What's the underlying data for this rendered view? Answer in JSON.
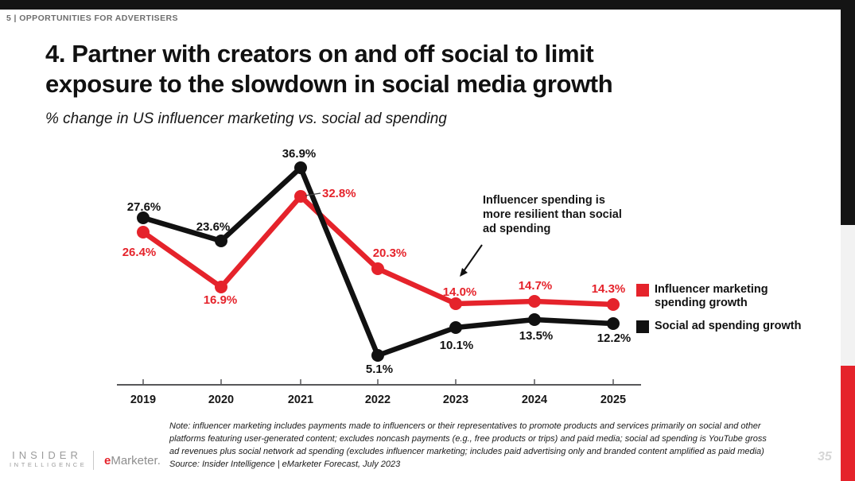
{
  "header": {
    "label": "5 | OPPORTUNITIES FOR ADVERTISERS"
  },
  "title": {
    "line1": "4. Partner with creators on and off social to limit",
    "line2": "exposure to the slowdown in social media growth"
  },
  "subtitle": "% change in US influencer marketing vs. social ad spending",
  "chart_data": {
    "type": "line",
    "categories": [
      "2019",
      "2020",
      "2021",
      "2022",
      "2023",
      "2024",
      "2025"
    ],
    "series": [
      {
        "name": "Influencer marketing spending growth",
        "color": "#e5232b",
        "values": [
          26.4,
          16.9,
          32.8,
          20.3,
          14.0,
          14.7,
          14.3
        ]
      },
      {
        "name": "Social ad spending growth",
        "color": "#111111",
        "values": [
          27.6,
          23.6,
          36.9,
          5.1,
          10.1,
          13.5,
          12.2
        ]
      }
    ],
    "value_suffix": "%",
    "ylim": [
      0,
      40
    ],
    "grid": false,
    "legend_position": "right",
    "annotation": "Influencer spending is more resilient than social ad spending"
  },
  "annotation": {
    "lines": [
      "Influencer spending is",
      "more resilient than social",
      "ad spending"
    ]
  },
  "legend": [
    {
      "color": "#e5232b",
      "label_lines": [
        "Influencer marketing",
        "spending growth"
      ]
    },
    {
      "color": "#111111",
      "label_lines": [
        "Social ad spending growth"
      ]
    }
  ],
  "note": {
    "lines": [
      "Note: influencer marketing includes payments made to influencers or their representatives to promote products and services primarily on social and other",
      "platforms featuring user-generated content; excludes noncash payments (e.g., free products or trips) and paid media; social ad spending is YouTube gross",
      "ad revenues plus social network ad spending (excludes influencer marketing; includes paid advertising only and branded content amplified as paid media)",
      "Source: Insider Intelligence | eMarketer Forecast, July 2023"
    ]
  },
  "logos": {
    "insider_top": "INSIDER",
    "insider_bottom": "INTELLIGENCE",
    "emarketer_prefix": "e",
    "emarketer_name": "Marketer."
  },
  "page_number": "35",
  "colors": {
    "accent_red": "#e5232b",
    "bar_black": "#141414",
    "strip_gray": "#f2f2f2"
  }
}
